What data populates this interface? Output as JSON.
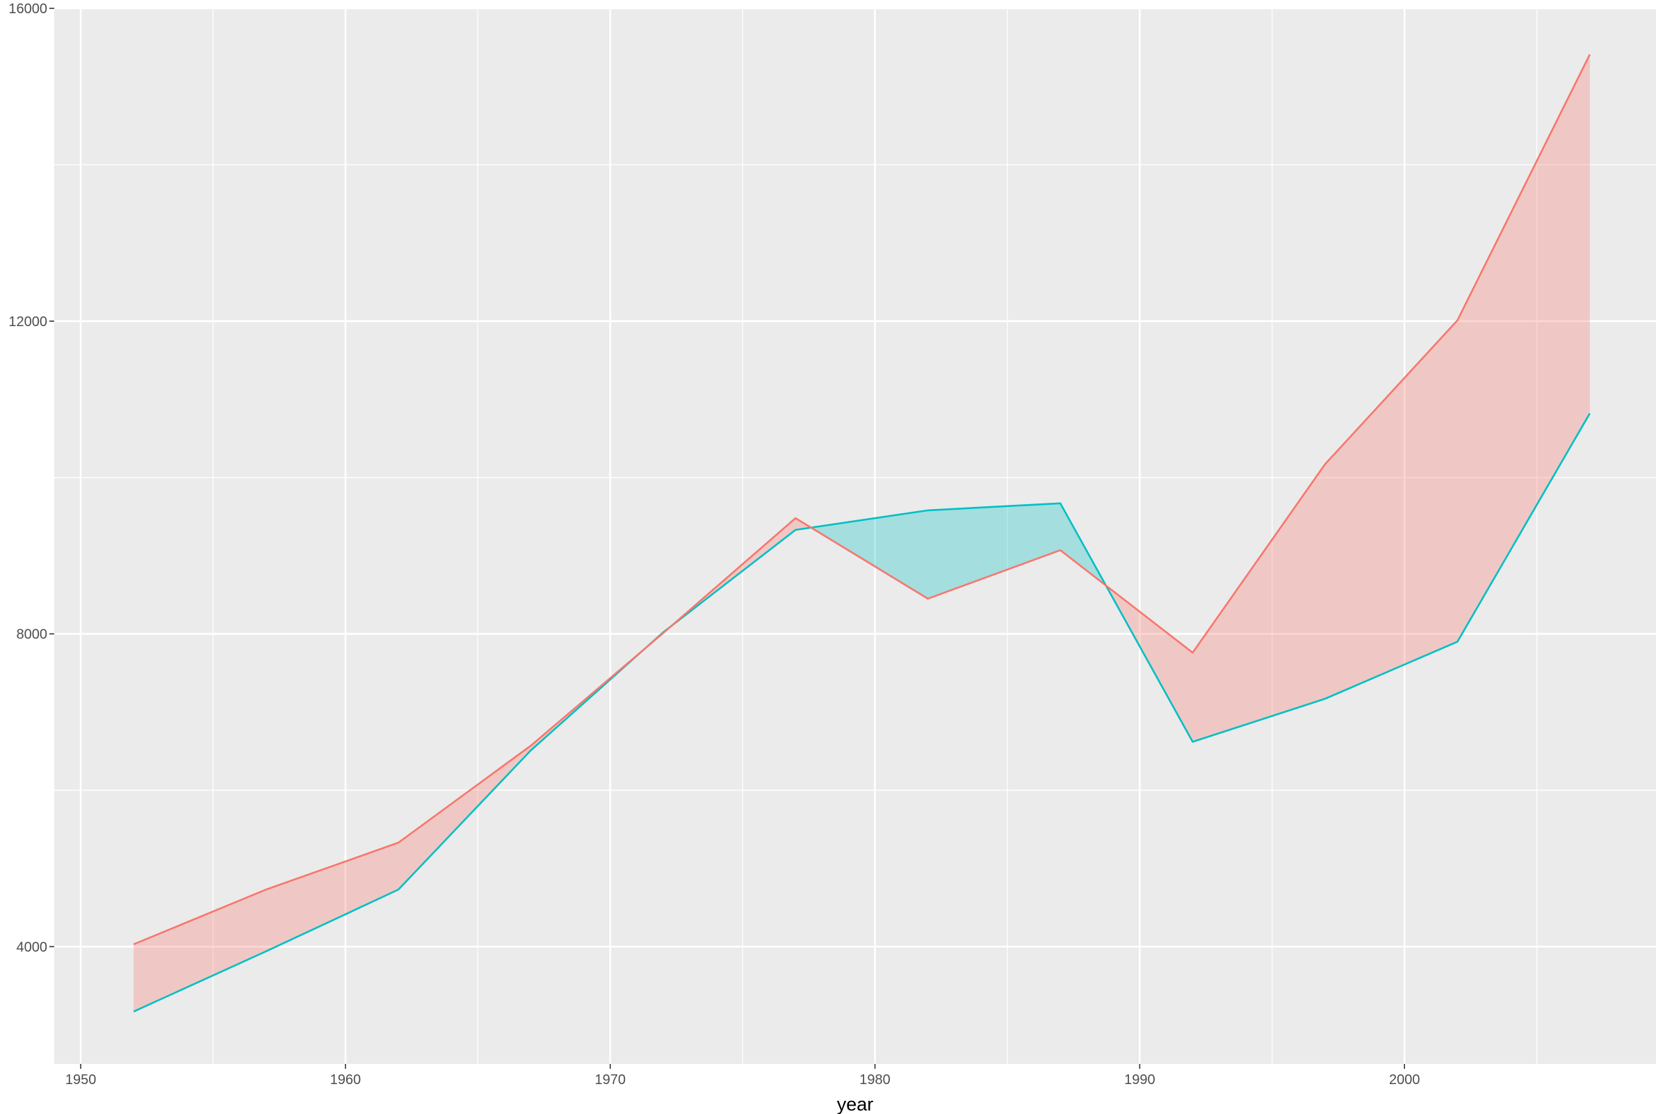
{
  "chart_data": {
    "type": "area",
    "xlabel": "year",
    "ylabel": "",
    "xlim": [
      1949,
      2009.5
    ],
    "ylim": [
      2500,
      16000
    ],
    "x_ticks": [
      1950,
      1960,
      1970,
      1980,
      1990,
      2000
    ],
    "x_tick_labels": [
      "1950",
      "1960",
      "1970",
      "1980",
      "1990",
      "2000"
    ],
    "y_ticks": [
      4000,
      8000,
      12000,
      16000
    ],
    "y_tick_labels": [
      "4000",
      "8000",
      "12000",
      "16000"
    ],
    "grid": true,
    "x": [
      1952,
      1957,
      1962,
      1967,
      1972,
      1977,
      1982,
      1987,
      1992,
      1997,
      2002,
      2007
    ],
    "series": [
      {
        "values": [
          4030,
          4730,
          5330,
          6570,
          8010,
          9480,
          8450,
          9070,
          7760,
          10170,
          12010,
          15410
        ],
        "color": "#F8766D"
      },
      {
        "values": [
          3170,
          3940,
          4730,
          6510,
          8020,
          9330,
          9580,
          9670,
          6620,
          7170,
          7900,
          10820
        ],
        "color": "#00BFC4"
      }
    ],
    "ribbon_fill_above": "#F8766D",
    "ribbon_fill_below": "#00BFC4",
    "ribbon_alpha": 0.3,
    "panel_background": "#EBEBEB",
    "grid_color": "#FFFFFF"
  }
}
